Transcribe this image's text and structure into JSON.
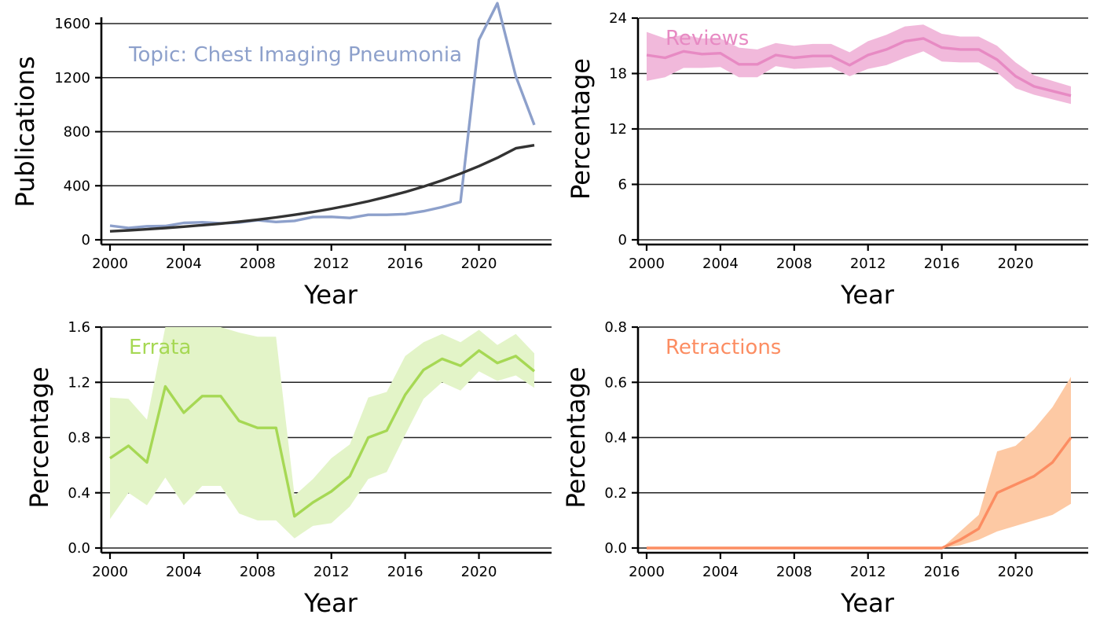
{
  "chart_data": [
    {
      "type": "line",
      "panel_label": "Topic: Chest Imaging Pneumonia",
      "xlabel": "Year",
      "ylabel": "Publications",
      "xlim": [
        1999.7,
        2024.2
      ],
      "ylim": [
        0,
        1600
      ],
      "ylim_axis_top": 1760,
      "xticks": [
        2000,
        2004,
        2008,
        2012,
        2016,
        2020
      ],
      "yticks": [
        0,
        400,
        800,
        1200,
        1600
      ],
      "grid": "horizontal",
      "series": [
        {
          "color": "#8da0cb",
          "x": [
            2000,
            2001,
            2002,
            2003,
            2004,
            2005,
            2006,
            2007,
            2008,
            2009,
            2010,
            2011,
            2012,
            2013,
            2014,
            2015,
            2016,
            2017,
            2018,
            2019,
            2020,
            2021,
            2022,
            2023
          ],
          "values": [
            105,
            88,
            100,
            102,
            125,
            130,
            122,
            128,
            145,
            132,
            140,
            168,
            170,
            162,
            185,
            185,
            190,
            212,
            242,
            280,
            1480,
            1750,
            1210,
            850
          ]
        },
        {
          "color": "#333333",
          "fit": "exponential",
          "x": [
            2000,
            2001,
            2002,
            2003,
            2004,
            2005,
            2006,
            2007,
            2008,
            2009,
            2010,
            2011,
            2012,
            2013,
            2014,
            2015,
            2016,
            2017,
            2018,
            2019,
            2020,
            2021,
            2022,
            2023
          ],
          "values": [
            63,
            70,
            78,
            87,
            97,
            108,
            120,
            134,
            149,
            166,
            185,
            206,
            230,
            256,
            285,
            318,
            354,
            394,
            439,
            490,
            545,
            607,
            677,
            700
          ]
        }
      ]
    },
    {
      "type": "line",
      "panel_label": "Reviews",
      "xlabel": "Year",
      "ylabel": "Percentage",
      "xlim": [
        1999.7,
        2024.2
      ],
      "ylim": [
        0,
        24
      ],
      "xticks": [
        2000,
        2004,
        2008,
        2012,
        2016,
        2020
      ],
      "yticks": [
        0,
        6,
        12,
        18,
        24
      ],
      "grid": "horizontal",
      "series": [
        {
          "color": "#e78ac3",
          "band_color": "#f1b9db",
          "x": [
            2000,
            2001,
            2002,
            2003,
            2004,
            2005,
            2006,
            2007,
            2008,
            2009,
            2010,
            2011,
            2012,
            2013,
            2014,
            2015,
            2016,
            2017,
            2018,
            2019,
            2020,
            2021,
            2022,
            2023
          ],
          "values": [
            20.0,
            19.7,
            20.4,
            20.1,
            20.2,
            19.0,
            19.0,
            20.0,
            19.7,
            19.9,
            19.9,
            18.9,
            20.0,
            20.6,
            21.5,
            21.8,
            20.8,
            20.6,
            20.6,
            19.5,
            17.7,
            16.6,
            16.1,
            15.6
          ],
          "upper": [
            22.5,
            21.8,
            22.2,
            21.8,
            21.8,
            20.8,
            20.6,
            21.3,
            21.0,
            21.2,
            21.2,
            20.3,
            21.5,
            22.2,
            23.1,
            23.3,
            22.3,
            22.0,
            22.0,
            21.0,
            19.2,
            17.8,
            17.2,
            16.6
          ],
          "lower": [
            17.2,
            17.6,
            18.6,
            18.6,
            18.7,
            17.6,
            17.6,
            18.8,
            18.5,
            18.6,
            18.7,
            17.7,
            18.5,
            18.9,
            19.7,
            20.4,
            19.3,
            19.2,
            19.2,
            18.1,
            16.4,
            15.7,
            15.2,
            14.7
          ]
        }
      ]
    },
    {
      "type": "line",
      "panel_label": "Errata",
      "xlabel": "Year",
      "ylabel": "Percentage",
      "xlim": [
        1999.7,
        2024.2
      ],
      "ylim": [
        0,
        1.6
      ],
      "xticks": [
        2000,
        2004,
        2008,
        2012,
        2016,
        2020
      ],
      "yticks": [
        0.0,
        0.4,
        0.8,
        1.2,
        1.6
      ],
      "ytick_labels": [
        "0.0",
        "0.4",
        "0.8",
        "1.2",
        "1.6"
      ],
      "grid": "horizontal",
      "series": [
        {
          "color": "#a6d854",
          "band_color": "#e3f4c8",
          "x": [
            2000,
            2001,
            2002,
            2003,
            2004,
            2005,
            2006,
            2007,
            2008,
            2009,
            2010,
            2011,
            2012,
            2013,
            2014,
            2015,
            2016,
            2017,
            2018,
            2019,
            2020,
            2021,
            2022,
            2023
          ],
          "values": [
            0.65,
            0.74,
            0.62,
            1.17,
            0.98,
            1.1,
            1.1,
            0.92,
            0.87,
            0.87,
            0.23,
            0.33,
            0.41,
            0.52,
            0.8,
            0.85,
            1.11,
            1.29,
            1.37,
            1.32,
            1.43,
            1.34,
            1.39,
            1.28
          ],
          "upper": [
            1.09,
            1.08,
            0.93,
            1.6,
            1.6,
            1.6,
            1.6,
            1.56,
            1.53,
            1.53,
            0.38,
            0.5,
            0.65,
            0.75,
            1.09,
            1.13,
            1.39,
            1.49,
            1.55,
            1.49,
            1.58,
            1.47,
            1.55,
            1.41
          ],
          "lower": [
            0.21,
            0.4,
            0.31,
            0.51,
            0.31,
            0.45,
            0.45,
            0.25,
            0.2,
            0.2,
            0.07,
            0.16,
            0.18,
            0.3,
            0.5,
            0.55,
            0.82,
            1.08,
            1.2,
            1.14,
            1.28,
            1.21,
            1.25,
            1.16
          ]
        }
      ]
    },
    {
      "type": "line",
      "panel_label": "Retractions",
      "xlabel": "Year",
      "ylabel": "Percentage",
      "xlim": [
        1999.7,
        2024.2
      ],
      "ylim": [
        0,
        0.8
      ],
      "xticks": [
        2000,
        2004,
        2008,
        2012,
        2016,
        2020
      ],
      "yticks": [
        0.0,
        0.2,
        0.4,
        0.6,
        0.8
      ],
      "ytick_labels": [
        "0.0",
        "0.2",
        "0.4",
        "0.6",
        "0.8"
      ],
      "grid": "horizontal",
      "series": [
        {
          "color": "#fc8d62",
          "band_color": "#fdc9a4",
          "x": [
            2000,
            2001,
            2002,
            2003,
            2004,
            2005,
            2006,
            2007,
            2008,
            2009,
            2010,
            2011,
            2012,
            2013,
            2014,
            2015,
            2016,
            2017,
            2018,
            2019,
            2020,
            2021,
            2022,
            2023
          ],
          "values": [
            0,
            0,
            0,
            0,
            0,
            0,
            0,
            0,
            0,
            0,
            0,
            0,
            0,
            0,
            0,
            0,
            0,
            0.03,
            0.07,
            0.2,
            0.23,
            0.26,
            0.31,
            0.4
          ],
          "upper": [
            0,
            0,
            0,
            0,
            0,
            0,
            0,
            0,
            0,
            0,
            0,
            0,
            0,
            0,
            0,
            0,
            0,
            0.06,
            0.12,
            0.35,
            0.37,
            0.43,
            0.51,
            0.62
          ],
          "lower": [
            0,
            0,
            0,
            0,
            0,
            0,
            0,
            0,
            0,
            0,
            0,
            0,
            0,
            0,
            0,
            0,
            0,
            0.01,
            0.03,
            0.06,
            0.08,
            0.1,
            0.12,
            0.16
          ]
        }
      ]
    }
  ]
}
